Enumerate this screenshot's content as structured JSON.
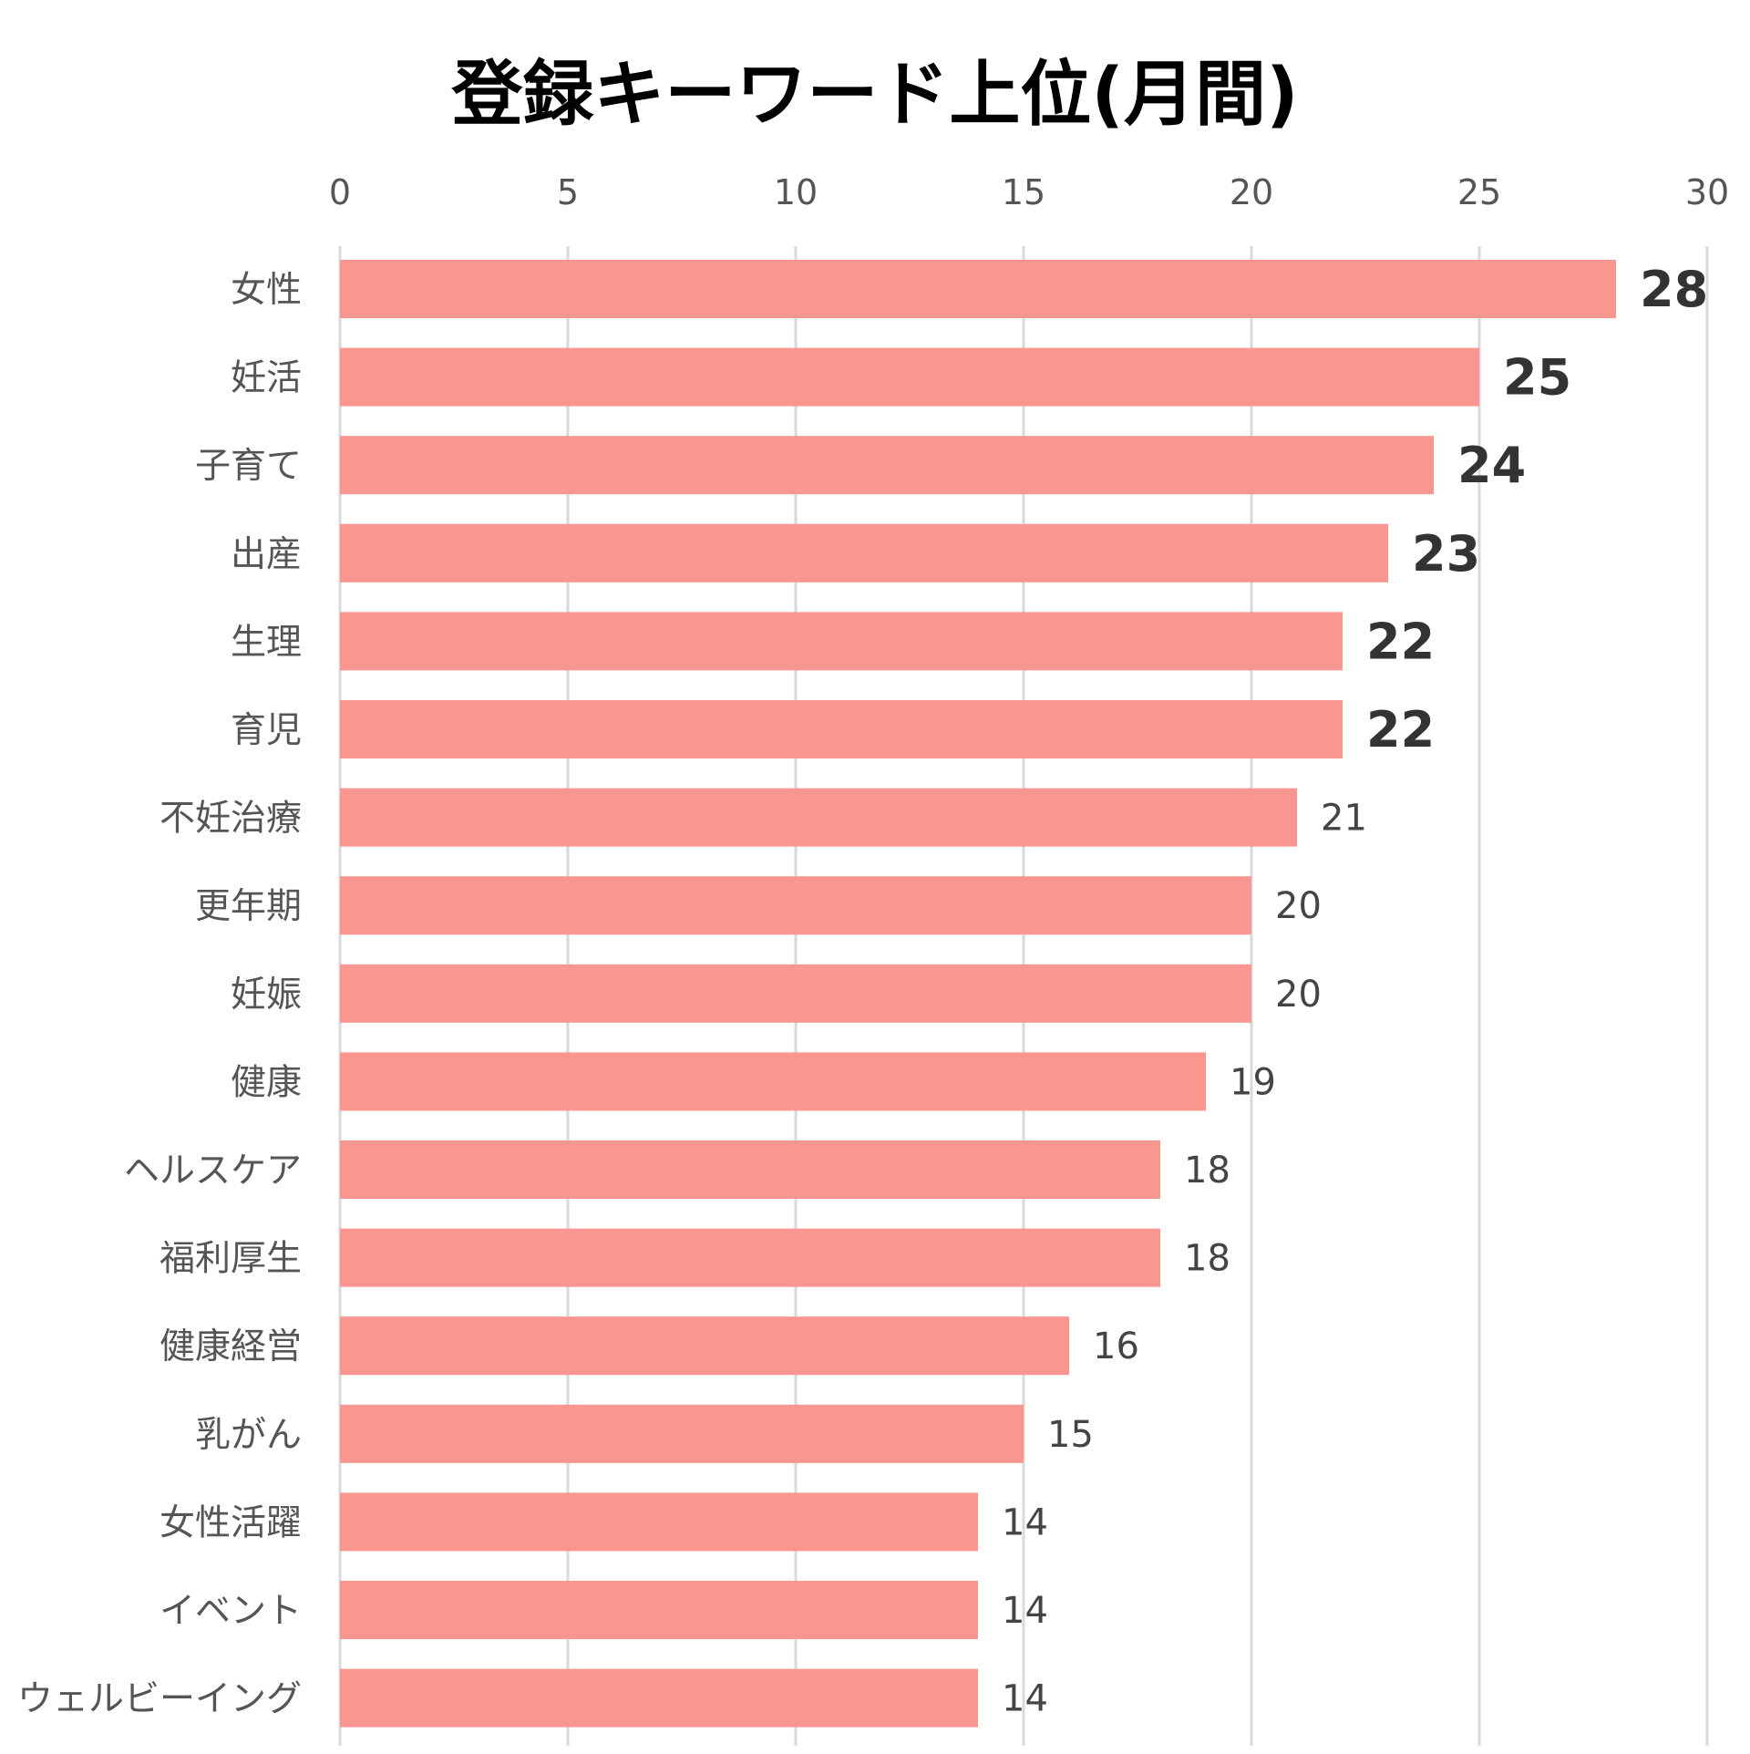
{
  "chart_data": {
    "type": "bar",
    "orientation": "horizontal",
    "title": "登録キーワード上位(月間)",
    "xlabel": "",
    "ylabel": "",
    "xlim": [
      0,
      30
    ],
    "ticks": [
      "0",
      "5",
      "10",
      "15",
      "20",
      "25",
      "30"
    ],
    "tick_position": "top",
    "grid": true,
    "legend": "none",
    "categories": [
      "女性",
      "妊活",
      "子育て",
      "出産",
      "生理",
      "育児",
      "不妊治療",
      "更年期",
      "妊娠",
      "健康",
      "ヘルスケア",
      "福利厚生",
      "健康経営",
      "乳がん",
      "女性活躍",
      "イベント",
      "ウェルビーイング"
    ],
    "values": [
      28,
      25,
      24,
      23,
      22,
      22,
      21,
      20,
      20,
      19,
      18,
      18,
      16,
      15,
      14,
      14,
      14
    ],
    "value_labels": [
      "28",
      "25",
      "24",
      "23",
      "22",
      "22",
      "21",
      "20",
      "20",
      "19",
      "18",
      "18",
      "16",
      "15",
      "14",
      "14",
      "14"
    ],
    "highlighted_labels": [
      "28",
      "25",
      "24",
      "23",
      "22",
      "22"
    ],
    "bar_color": "#f8968f",
    "grid_color": "#d9d9d9"
  }
}
